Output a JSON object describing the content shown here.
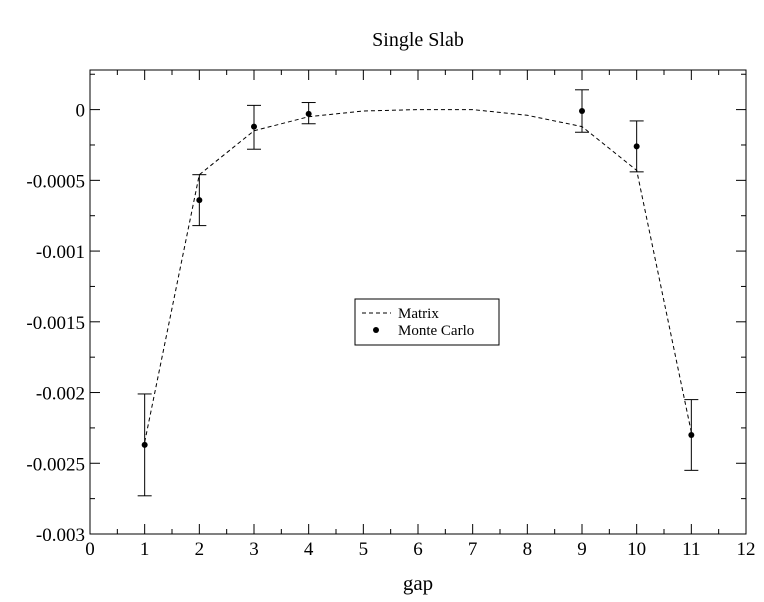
{
  "chart_data": {
    "type": "line",
    "title": "Single Slab",
    "xlabel": "gap",
    "ylabel": "",
    "xlim": [
      0,
      12
    ],
    "ylim": [
      -0.003,
      0.00028
    ],
    "x_ticks": [
      0,
      1,
      2,
      3,
      4,
      5,
      6,
      7,
      8,
      9,
      10,
      11,
      12
    ],
    "x_tick_labels": [
      "0",
      "1",
      "2",
      "3",
      "4",
      "5",
      "6",
      "7",
      "8",
      "9",
      "10",
      "11",
      "12"
    ],
    "y_ticks": [
      0,
      -0.0005,
      -0.001,
      -0.0015,
      -0.002,
      -0.0025,
      -0.003
    ],
    "y_tick_labels": [
      "0",
      "-0.0005",
      "-0.001",
      "-0.0015",
      "-0.002",
      "-0.0025",
      "-0.003"
    ],
    "grid": false,
    "legend_position": "center",
    "series": [
      {
        "name": "Matrix",
        "style": "dashed-line",
        "color": "#000000",
        "x": [
          1,
          2,
          3,
          4,
          5,
          6,
          7,
          8,
          9,
          10,
          11
        ],
        "y": [
          -0.00235,
          -0.00046,
          -0.00015,
          -5e-05,
          -1e-05,
          0.0,
          0.0,
          -4e-05,
          -0.00012,
          -0.00043,
          -0.00228
        ]
      },
      {
        "name": "Monte Carlo",
        "style": "points-with-errorbars",
        "color": "#000000",
        "x": [
          1,
          2,
          3,
          4,
          9,
          10,
          11
        ],
        "y": [
          -0.00237,
          -0.00064,
          -0.00012,
          -3e-05,
          -1e-05,
          -0.00026,
          -0.0023
        ],
        "err_low": [
          -0.00273,
          -0.00082,
          -0.00028,
          -0.0001,
          -0.00016,
          -0.00044,
          -0.00255
        ],
        "err_high": [
          -0.00201,
          -0.00046,
          3e-05,
          5e-05,
          0.00014,
          -8e-05,
          -0.00205
        ]
      }
    ]
  }
}
